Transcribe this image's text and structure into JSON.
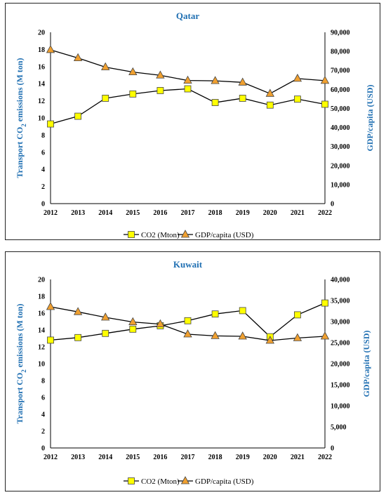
{
  "chart_data": [
    {
      "type": "line",
      "title": "Qatar",
      "categories": [
        "2012",
        "2013",
        "2014",
        "2015",
        "2016",
        "2017",
        "2018",
        "2019",
        "2020",
        "2021",
        "2022"
      ],
      "ylabel": "Transport CO2 emissions (M ton)",
      "ylabel_main": "Transport CO",
      "ylabel_sub": "2",
      "ylabel_tail": " emissions (M ton)",
      "y2label": "GDP/capita (USD)",
      "ylim": [
        0,
        20
      ],
      "y2lim": [
        0,
        90000
      ],
      "yticks": [
        "0",
        "2",
        "4",
        "6",
        "8",
        "10",
        "12",
        "14",
        "16",
        "18",
        "20"
      ],
      "y2ticks": [
        "0",
        "10,000",
        "20,000",
        "30,000",
        "40,000",
        "50,000",
        "60,000",
        "70,000",
        "80,000",
        "90,000"
      ],
      "grid": false,
      "legend_position": "bottom",
      "series": [
        {
          "name": "CO2 (Mton)",
          "axis": "left",
          "marker": "square",
          "color": "#ffff00",
          "values": [
            9.3,
            10.2,
            12.3,
            12.8,
            13.2,
            13.4,
            11.8,
            12.3,
            11.5,
            12.2,
            11.6
          ]
        },
        {
          "name": "GDP/capita (USD)",
          "axis": "right",
          "marker": "triangle",
          "color": "#f0a030",
          "values": [
            80800,
            76500,
            71700,
            69100,
            67400,
            64700,
            64500,
            63700,
            57800,
            65700,
            64600
          ]
        }
      ]
    },
    {
      "type": "line",
      "title": "Kuwait",
      "categories": [
        "2012",
        "2013",
        "2014",
        "2015",
        "2016",
        "2017",
        "2018",
        "2019",
        "2020",
        "2021",
        "2022"
      ],
      "ylabel": "Transport CO2 emissions (M ton)",
      "ylabel_main": "Transport CO",
      "ylabel_sub": "2",
      "ylabel_tail": " emissions (M ton)",
      "y2label": "GDP/capita (USD)",
      "ylim": [
        0,
        20
      ],
      "y2lim": [
        0,
        40000
      ],
      "yticks": [
        "0",
        "2",
        "4",
        "6",
        "8",
        "10",
        "12",
        "14",
        "16",
        "18",
        "20"
      ],
      "y2ticks": [
        "0",
        "5,000",
        "10,000",
        "15,000",
        "20,000",
        "25,000",
        "30,000",
        "35,000",
        "40,000"
      ],
      "grid": false,
      "legend_position": "bottom",
      "series": [
        {
          "name": "CO2 (Mton)",
          "axis": "left",
          "marker": "square",
          "color": "#ffff00",
          "values": [
            12.8,
            13.1,
            13.6,
            14.1,
            14.5,
            15.1,
            15.9,
            16.3,
            13.2,
            15.8,
            17.2
          ]
        },
        {
          "name": "GDP/capita (USD)",
          "axis": "right",
          "marker": "triangle",
          "color": "#f0a030",
          "values": [
            33500,
            32300,
            31000,
            29900,
            29400,
            27000,
            26600,
            26500,
            25500,
            26100,
            26500
          ]
        }
      ]
    }
  ]
}
